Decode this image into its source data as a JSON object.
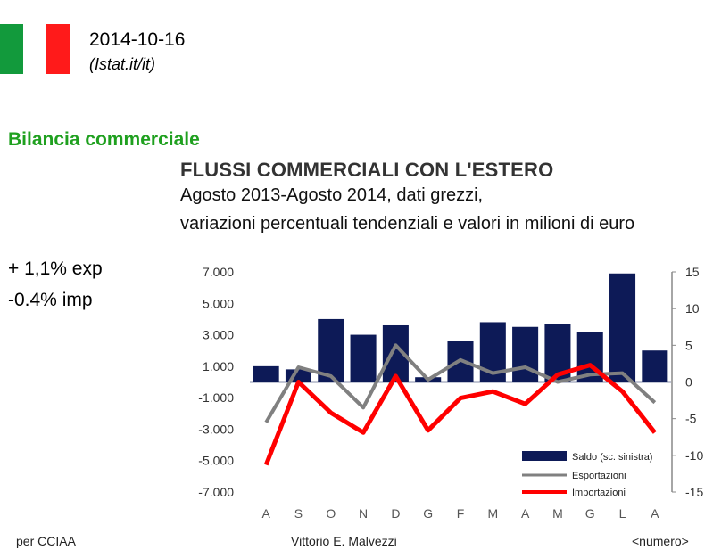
{
  "header": {
    "date": "2014-10-16",
    "source": "(Istat.it/it)",
    "flag_colors": [
      "#129a3c",
      "#ffffff",
      "#ff1a1a"
    ]
  },
  "section_title": "Bilancia commerciale",
  "notes": {
    "export": "+ 1,1% exp",
    "import": "-0.4% imp"
  },
  "footer": {
    "left": "per CCIAA",
    "center": "Vittorio E. Malvezzi",
    "right": "<numero>"
  },
  "chart_data": {
    "type": "bar",
    "title": "FLUSSI COMMERCIALI CON L'ESTERO",
    "subtitle": [
      "Agosto 2013-Agosto 2014, dati grezzi,",
      "variazioni percentuali tendenziali e valori in milioni di euro"
    ],
    "categories": [
      "A",
      "S",
      "O",
      "N",
      "D",
      "G",
      "F",
      "M",
      "A",
      "M",
      "G",
      "L",
      "A"
    ],
    "left_axis": {
      "ticks": [
        "7.000",
        "5.000",
        "3.000",
        "1.000",
        "-1.000",
        "-3.000",
        "-5.000",
        "-7.000"
      ],
      "ylim": [
        -7000,
        7000
      ]
    },
    "right_axis": {
      "ticks": [
        "15",
        "10",
        "5",
        "0",
        "-5",
        "-10",
        "-15"
      ],
      "ylim": [
        -15,
        15
      ]
    },
    "series": [
      {
        "name": "Saldo (sc. sinistra)",
        "kind": "bar",
        "axis": "left",
        "color": "#0d1a57",
        "values": [
          1000,
          800,
          4000,
          3000,
          3600,
          300,
          2600,
          3800,
          3500,
          3700,
          3200,
          6900,
          2000
        ]
      },
      {
        "name": "Esportazioni",
        "kind": "line",
        "axis": "right",
        "color": "#808080",
        "values": [
          -5.5,
          2,
          0.8,
          -3.5,
          5,
          0.3,
          3,
          1.2,
          2,
          0,
          1,
          1.2,
          -2.8
        ]
      },
      {
        "name": "Importazioni",
        "kind": "line",
        "axis": "right",
        "color": "#ff0000",
        "values": [
          -11.3,
          0,
          -4.2,
          -6.9,
          0.8,
          -6.6,
          -2.2,
          -1.3,
          -3,
          1,
          2.3,
          -1.3,
          -6.9
        ]
      }
    ],
    "legend_position": "bottom-right",
    "grid": false
  }
}
